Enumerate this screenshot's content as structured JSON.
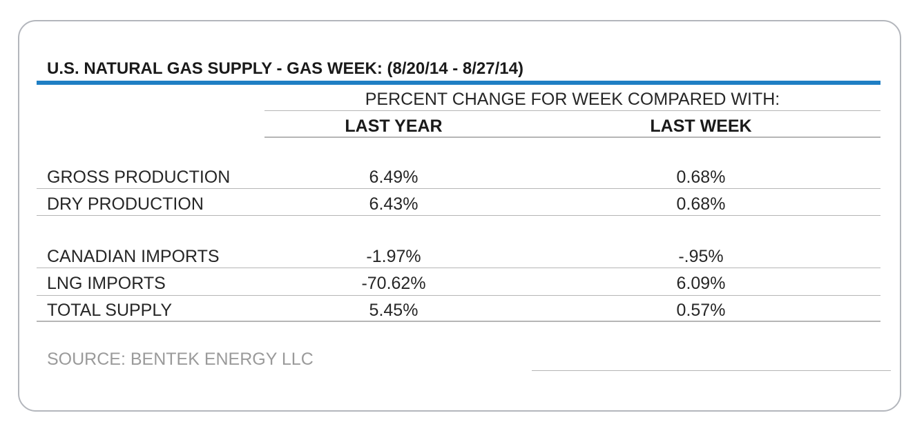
{
  "chart_data": {
    "type": "table",
    "title": "U.S. NATURAL GAS SUPPLY - GAS WEEK: (8/20/14 - 8/27/14)",
    "group_header": "PERCENT CHANGE FOR WEEK COMPARED WITH:",
    "columns": [
      "LAST YEAR",
      "LAST WEEK"
    ],
    "rows": [
      {
        "label": "GROSS PRODUCTION",
        "last_year": "6.49%",
        "last_week": "0.68%"
      },
      {
        "label": "DRY PRODUCTION",
        "last_year": "6.43%",
        "last_week": "0.68%"
      },
      {
        "label": "CANADIAN IMPORTS",
        "last_year": "-1.97%",
        "last_week": "-.95%"
      },
      {
        "label": "LNG IMPORTS",
        "last_year": "-70.62%",
        "last_week": "6.09%"
      },
      {
        "label": "TOTAL SUPPLY",
        "last_year": "5.45%",
        "last_week": "0.57%"
      }
    ],
    "source": "SOURCE: BENTEK ENERGY LLC"
  },
  "colors": {
    "accent_rule": "#1f7fc4",
    "border": "#b3b6bc",
    "text": "#262626",
    "source_text": "#9a9a9a"
  }
}
